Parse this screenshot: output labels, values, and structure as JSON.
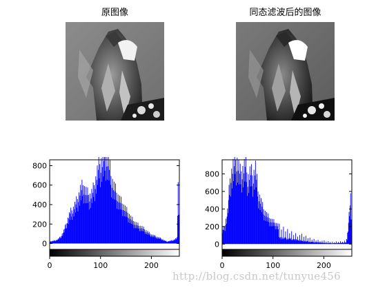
{
  "images": {
    "left_title": "原图像",
    "right_title": "同态滤波后的图像"
  },
  "watermark": "http://blog.csdn.net/tunyue456",
  "colors": {
    "bar": "#0000ff",
    "axis": "#000000",
    "background": "#ffffff"
  },
  "chart_data": [
    {
      "type": "bar",
      "series": [
        {
          "name": "",
          "color": "#0000ff"
        }
      ],
      "x": [
        0,
        5,
        10,
        15,
        20,
        25,
        30,
        35,
        40,
        45,
        50,
        55,
        60,
        65,
        70,
        75,
        80,
        85,
        90,
        95,
        100,
        105,
        110,
        115,
        120,
        125,
        130,
        135,
        140,
        145,
        150,
        155,
        160,
        165,
        170,
        175,
        180,
        185,
        190,
        195,
        200,
        205,
        210,
        215,
        220,
        225,
        230,
        235,
        240,
        245,
        250,
        252,
        255
      ],
      "values": [
        20,
        25,
        30,
        40,
        60,
        100,
        160,
        240,
        300,
        330,
        380,
        440,
        520,
        560,
        510,
        470,
        460,
        520,
        620,
        740,
        780,
        820,
        860,
        800,
        650,
        560,
        500,
        440,
        400,
        360,
        320,
        280,
        240,
        210,
        190,
        170,
        160,
        140,
        120,
        100,
        85,
        75,
        65,
        55,
        45,
        30,
        20,
        25,
        30,
        40,
        55,
        590,
        0
      ],
      "xlim": [
        0,
        255
      ],
      "ylim": [
        -60,
        860
      ],
      "xticks": [
        "0",
        "100",
        "200"
      ],
      "xtick_values": [
        0,
        100,
        200
      ],
      "yticks": [
        "0",
        "200",
        "400",
        "600",
        "800"
      ],
      "ytick_values": [
        0,
        200,
        400,
        600,
        800
      ],
      "grid": false,
      "colorbar": "gray"
    },
    {
      "type": "bar",
      "series": [
        {
          "name": "",
          "color": "#0000ff"
        }
      ],
      "x": [
        0,
        5,
        10,
        15,
        20,
        25,
        30,
        35,
        40,
        45,
        50,
        55,
        60,
        65,
        70,
        75,
        80,
        85,
        90,
        95,
        100,
        105,
        110,
        115,
        120,
        125,
        130,
        135,
        140,
        145,
        150,
        155,
        160,
        165,
        170,
        175,
        180,
        185,
        190,
        195,
        200,
        205,
        210,
        215,
        220,
        225,
        230,
        235,
        240,
        245,
        250,
        252,
        255
      ],
      "values": [
        150,
        200,
        350,
        700,
        820,
        900,
        880,
        760,
        800,
        860,
        700,
        780,
        720,
        820,
        560,
        470,
        380,
        330,
        290,
        260,
        240,
        220,
        200,
        180,
        170,
        160,
        150,
        140,
        130,
        120,
        110,
        100,
        90,
        80,
        70,
        60,
        55,
        50,
        45,
        40,
        35,
        30,
        28,
        25,
        25,
        30,
        30,
        35,
        40,
        50,
        400,
        500,
        0
      ],
      "xlim": [
        0,
        255
      ],
      "ylim": [
        -60,
        960
      ],
      "xticks": [
        "0",
        "100",
        "200"
      ],
      "xtick_values": [
        0,
        100,
        200
      ],
      "yticks": [
        "0",
        "200",
        "400",
        "600",
        "800"
      ],
      "ytick_values": [
        0,
        200,
        400,
        600,
        800
      ],
      "grid": false,
      "colorbar": "gray"
    }
  ]
}
